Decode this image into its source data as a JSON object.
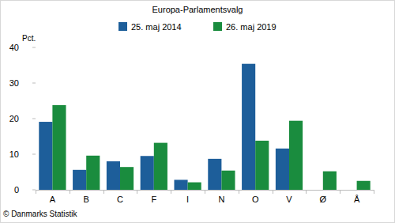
{
  "chart_data": {
    "type": "bar",
    "title": "Europa-Parlamentsvalg",
    "ylabel": "Pct.",
    "source": "© Danmarks Statistik",
    "categories": [
      "A",
      "B",
      "C",
      "F",
      "I",
      "N",
      "O",
      "V",
      "Ø",
      "Å"
    ],
    "series": [
      {
        "name": "25. maj 2014",
        "color": "#1d5e9a",
        "values": [
          19.1,
          5.6,
          8.0,
          9.5,
          2.8,
          8.7,
          35.4,
          11.6,
          null,
          null
        ]
      },
      {
        "name": "26. maj 2019",
        "color": "#1a8c3e",
        "values": [
          23.8,
          9.6,
          6.4,
          13.2,
          2.1,
          5.4,
          13.8,
          19.4,
          5.2,
          2.5
        ]
      }
    ],
    "ylim": [
      0,
      40
    ],
    "yticks": [
      0,
      10,
      20,
      30,
      40
    ],
    "grid": false,
    "legend": "top"
  }
}
